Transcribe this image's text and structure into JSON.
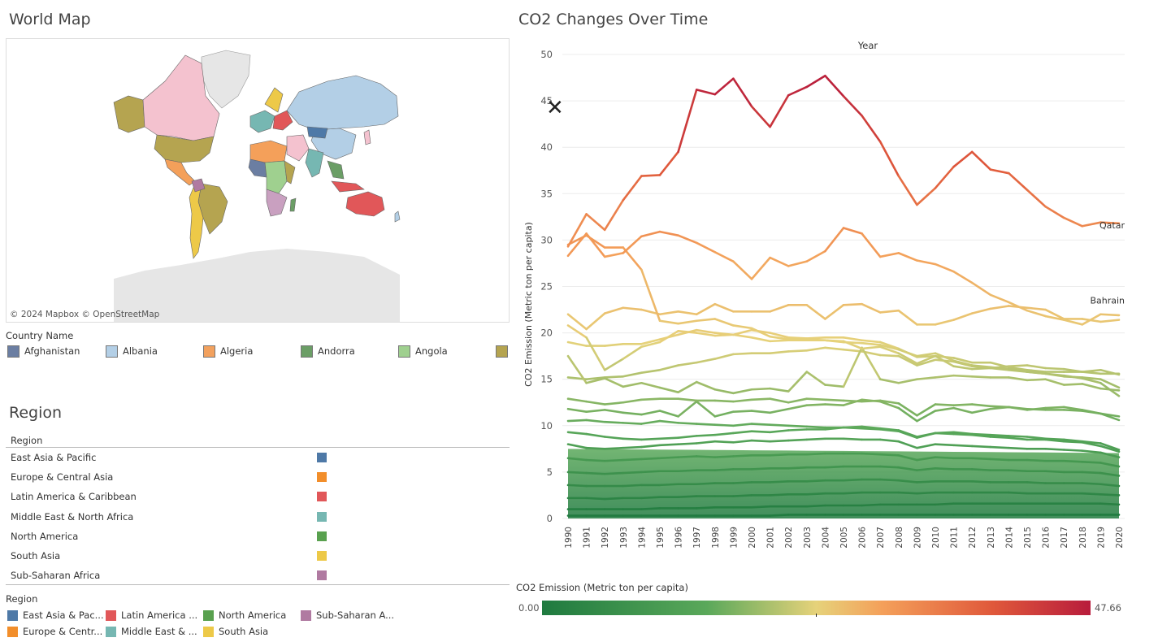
{
  "map_panel": {
    "title": "World Map",
    "attribution": "© 2024 Mapbox  © OpenStreetMap",
    "legend_title": "Country Name",
    "legend_items": [
      {
        "label": "Afghanistan",
        "color": "#6b7ea2"
      },
      {
        "label": "Albania",
        "color": "#b3cfe6"
      },
      {
        "label": "Algeria",
        "color": "#f2a15e"
      },
      {
        "label": "Andorra",
        "color": "#6b9e66"
      },
      {
        "label": "Angola",
        "color": "#9fd08f"
      },
      {
        "label": "",
        "color": "#b5a450"
      }
    ]
  },
  "region_panel": {
    "title": "Region",
    "column_header": "Region",
    "rows": [
      {
        "label": "East Asia & Pacific",
        "color": "#4e79a7"
      },
      {
        "label": "Europe & Central Asia",
        "color": "#f28e2b"
      },
      {
        "label": "Latin America & Caribbean",
        "color": "#e15759"
      },
      {
        "label": "Middle East & North Africa",
        "color": "#76b7b2"
      },
      {
        "label": "North America",
        "color": "#59a14f"
      },
      {
        "label": "South Asia",
        "color": "#edc948"
      },
      {
        "label": "Sub-Saharan Africa",
        "color": "#b07aa1"
      }
    ],
    "legend_title": "Region",
    "legend_items": [
      {
        "label": "East Asia & Pac...",
        "color": "#4e79a7"
      },
      {
        "label": "Latin America ...",
        "color": "#e15759"
      },
      {
        "label": "North America",
        "color": "#59a14f"
      },
      {
        "label": "Sub-Saharan A...",
        "color": "#b07aa1"
      },
      {
        "label": "Europe & Centr...",
        "color": "#f28e2b"
      },
      {
        "label": "Middle East & ...",
        "color": "#76b7b2"
      },
      {
        "label": "South Asia",
        "color": "#edc948"
      }
    ]
  },
  "chart_panel": {
    "title": "CO2 Changes Over Time",
    "close_icon": "close-icon",
    "color_legend": {
      "title": "CO2 Emission (Metric ton per capita)",
      "min_label": "0.00",
      "max_label": "47.66"
    }
  },
  "chart_data": {
    "type": "line",
    "title": "CO2 Changes Over Time",
    "xlabel": "Year",
    "ylabel": "CO2 Emission (Metric ton per capita)",
    "x": [
      1990,
      1991,
      1992,
      1993,
      1994,
      1995,
      1996,
      1997,
      1998,
      1999,
      2000,
      2001,
      2002,
      2003,
      2004,
      2005,
      2006,
      2007,
      2008,
      2009,
      2010,
      2011,
      2012,
      2013,
      2014,
      2015,
      2016,
      2017,
      2018,
      2019,
      2020
    ],
    "ylim": [
      0,
      50
    ],
    "yticks": [
      0,
      5,
      10,
      15,
      20,
      25,
      30,
      35,
      40,
      45,
      50
    ],
    "grid": true,
    "color_scale": [
      "#1f7a3f",
      "#5aa85a",
      "#e6d27a",
      "#f4a05a",
      "#e0593b",
      "#b81c3c"
    ],
    "series": [
      {
        "name": "Qatar",
        "values": [
          29.3,
          32.8,
          31.1,
          34.3,
          36.9,
          37.0,
          39.5,
          46.2,
          45.7,
          47.4,
          44.4,
          42.2,
          45.6,
          46.5,
          47.7,
          45.5,
          43.4,
          40.6,
          36.9,
          33.8,
          35.6,
          37.9,
          39.5,
          37.6,
          37.2,
          35.4,
          33.6,
          32.4,
          31.5,
          31.9,
          31.8
        ]
      },
      {
        "values": [
          28.3,
          30.7,
          28.2,
          28.6,
          30.4,
          30.9,
          30.5,
          29.7,
          28.7,
          27.7,
          25.8,
          28.1,
          27.2,
          27.7,
          28.8,
          31.3,
          30.7,
          28.2,
          28.6,
          27.8,
          27.4,
          26.6,
          25.4,
          24.1,
          23.3,
          22.4,
          21.8,
          21.4,
          20.9,
          22.0,
          21.9
        ]
      },
      {
        "values": [
          29.5,
          30.5,
          29.2,
          29.2,
          26.8,
          21.3,
          21.0,
          21.3,
          21.5,
          20.8,
          20.5,
          19.6,
          19.3,
          19.3,
          19.2,
          19.0,
          18.9,
          18.7,
          18.2,
          17.5,
          17.8,
          17.0,
          16.5,
          16.3,
          16.1,
          15.8,
          15.6,
          15.3,
          15.2,
          15.0,
          14.1
        ]
      },
      {
        "name": "Bahrain",
        "values": [
          22.0,
          20.4,
          22.1,
          22.7,
          22.5,
          22.0,
          22.3,
          22.0,
          23.1,
          22.3,
          22.3,
          22.3,
          23.0,
          23.0,
          21.5,
          23.0,
          23.1,
          22.2,
          22.4,
          20.9,
          20.9,
          21.4,
          22.1,
          22.6,
          22.9,
          22.7,
          22.5,
          21.5,
          21.5,
          21.2,
          21.4
        ]
      },
      {
        "values": [
          19.0,
          18.6,
          18.6,
          18.8,
          18.8,
          19.3,
          19.8,
          20.3,
          20.0,
          19.8,
          20.3,
          20.0,
          19.5,
          19.4,
          19.5,
          19.5,
          19.2,
          19.0,
          18.3,
          17.4,
          17.5,
          17.3,
          16.8,
          16.8,
          16.3,
          16.0,
          15.8,
          15.8,
          15.8,
          15.6,
          15.6
        ]
      },
      {
        "values": [
          20.8,
          19.5,
          16.0,
          17.2,
          18.5,
          19.0,
          20.2,
          20.0,
          19.7,
          19.8,
          19.5,
          19.1,
          19.2,
          19.2,
          19.2,
          19.1,
          18.3,
          18.5,
          17.8,
          16.7,
          17.5,
          16.4,
          16.1,
          16.2,
          16.4,
          16.5,
          16.2,
          16.1,
          15.8,
          16.0,
          15.5
        ]
      },
      {
        "values": [
          15.2,
          15.0,
          15.2,
          15.3,
          15.7,
          16.0,
          16.5,
          16.8,
          17.2,
          17.7,
          17.8,
          17.8,
          18.0,
          18.1,
          18.4,
          18.2,
          18.0,
          17.6,
          17.5,
          16.5,
          17.1,
          16.9,
          16.4,
          16.2,
          16.0,
          15.8,
          15.6,
          15.4,
          15.1,
          14.6,
          13.2
        ]
      },
      {
        "values": [
          17.5,
          14.6,
          15.1,
          14.2,
          14.6,
          14.1,
          13.6,
          14.7,
          13.9,
          13.5,
          13.9,
          14.0,
          13.7,
          15.8,
          14.4,
          14.2,
          18.4,
          15.0,
          14.6,
          15.0,
          15.2,
          15.4,
          15.3,
          15.2,
          15.2,
          14.9,
          15.0,
          14.4,
          14.5,
          14.0,
          13.8
        ]
      },
      {
        "values": [
          12.9,
          12.6,
          12.3,
          12.5,
          12.8,
          12.9,
          12.9,
          12.7,
          12.7,
          12.6,
          12.8,
          12.9,
          12.5,
          12.9,
          12.8,
          12.7,
          12.6,
          12.7,
          12.4,
          11.1,
          12.3,
          12.2,
          12.3,
          12.1,
          12.0,
          11.8,
          11.7,
          11.7,
          11.6,
          11.3,
          11.0
        ]
      },
      {
        "values": [
          11.8,
          11.5,
          11.7,
          11.4,
          11.2,
          11.6,
          11.0,
          12.6,
          11.0,
          11.5,
          11.6,
          11.4,
          11.8,
          12.2,
          12.3,
          12.2,
          12.8,
          12.6,
          11.9,
          10.5,
          11.6,
          11.9,
          11.4,
          11.8,
          12.0,
          11.7,
          11.9,
          12.0,
          11.7,
          11.3,
          10.6
        ]
      },
      {
        "values": [
          10.5,
          10.6,
          10.4,
          10.3,
          10.2,
          10.5,
          10.3,
          10.2,
          10.1,
          10.0,
          10.2,
          10.1,
          10.0,
          9.9,
          9.8,
          9.8,
          9.7,
          9.6,
          9.4,
          8.7,
          9.2,
          9.1,
          9.0,
          8.8,
          8.7,
          8.5,
          8.5,
          8.3,
          8.2,
          7.8,
          7.2
        ]
      },
      {
        "values": [
          9.3,
          9.1,
          8.8,
          8.6,
          8.5,
          8.6,
          8.7,
          8.9,
          9.0,
          9.2,
          9.4,
          9.3,
          9.5,
          9.6,
          9.6,
          9.8,
          9.9,
          9.7,
          9.5,
          8.8,
          9.2,
          9.3,
          9.1,
          9.0,
          8.9,
          8.8,
          8.6,
          8.5,
          8.3,
          8.1,
          7.4
        ]
      },
      {
        "values": [
          8.0,
          7.6,
          7.5,
          7.6,
          7.7,
          7.9,
          8.0,
          8.1,
          8.3,
          8.2,
          8.4,
          8.3,
          8.4,
          8.5,
          8.6,
          8.6,
          8.5,
          8.5,
          8.3,
          7.6,
          8.0,
          7.9,
          7.8,
          7.7,
          7.6,
          7.5,
          7.5,
          7.4,
          7.3,
          7.1,
          6.6
        ]
      },
      {
        "values": [
          6.5,
          6.3,
          6.2,
          6.3,
          6.4,
          6.5,
          6.6,
          6.7,
          6.6,
          6.7,
          6.8,
          6.8,
          6.9,
          6.9,
          7.0,
          7.0,
          7.0,
          6.9,
          6.8,
          6.3,
          6.6,
          6.5,
          6.5,
          6.4,
          6.3,
          6.3,
          6.2,
          6.2,
          6.1,
          6.0,
          5.6
        ]
      },
      {
        "values": [
          5.0,
          4.9,
          4.8,
          4.9,
          5.0,
          5.1,
          5.1,
          5.2,
          5.2,
          5.3,
          5.3,
          5.4,
          5.4,
          5.5,
          5.5,
          5.6,
          5.6,
          5.6,
          5.5,
          5.2,
          5.4,
          5.3,
          5.3,
          5.2,
          5.2,
          5.1,
          5.1,
          5.0,
          5.0,
          4.9,
          4.6
        ]
      },
      {
        "values": [
          3.6,
          3.5,
          3.5,
          3.5,
          3.6,
          3.6,
          3.7,
          3.7,
          3.8,
          3.8,
          3.9,
          3.9,
          4.0,
          4.0,
          4.1,
          4.1,
          4.2,
          4.2,
          4.1,
          3.9,
          4.0,
          4.0,
          4.0,
          3.9,
          3.9,
          3.9,
          3.8,
          3.8,
          3.8,
          3.7,
          3.5
        ]
      },
      {
        "values": [
          2.2,
          2.2,
          2.1,
          2.2,
          2.2,
          2.3,
          2.3,
          2.4,
          2.4,
          2.4,
          2.5,
          2.5,
          2.6,
          2.6,
          2.7,
          2.7,
          2.8,
          2.8,
          2.8,
          2.7,
          2.8,
          2.8,
          2.8,
          2.8,
          2.8,
          2.7,
          2.7,
          2.7,
          2.7,
          2.6,
          2.5
        ]
      },
      {
        "values": [
          1.0,
          1.0,
          1.0,
          1.0,
          1.0,
          1.1,
          1.1,
          1.1,
          1.2,
          1.2,
          1.2,
          1.3,
          1.3,
          1.3,
          1.4,
          1.4,
          1.4,
          1.5,
          1.5,
          1.5,
          1.5,
          1.6,
          1.6,
          1.6,
          1.6,
          1.6,
          1.6,
          1.6,
          1.6,
          1.6,
          1.5
        ]
      },
      {
        "values": [
          0.3,
          0.3,
          0.3,
          0.3,
          0.3,
          0.3,
          0.3,
          0.3,
          0.3,
          0.3,
          0.3,
          0.3,
          0.4,
          0.4,
          0.4,
          0.4,
          0.4,
          0.4,
          0.4,
          0.4,
          0.4,
          0.4,
          0.4,
          0.4,
          0.4,
          0.4,
          0.4,
          0.4,
          0.4,
          0.4,
          0.4
        ]
      }
    ]
  }
}
